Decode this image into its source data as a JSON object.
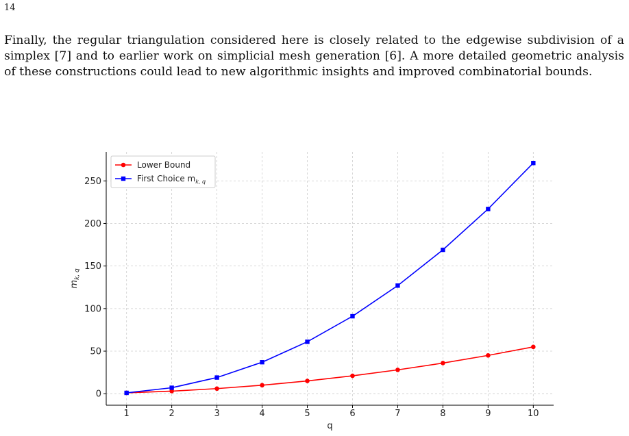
{
  "page": {
    "page_number": "14",
    "paragraph": "Finally, the regular triangulation considered here is closely related to the edgewise subdivision of a simplex [7] and to earlier work on simplicial mesh generation [6]. A more detailed geometric analysis of these constructions could lead to new algorithmic insights and improved combinatorial bounds."
  },
  "colors": {
    "lower_bound": "#ff0000",
    "first_choice": "#0000ff",
    "grid": "#cccccc",
    "axis": "#000000"
  },
  "chart_data": {
    "type": "line",
    "title": "",
    "xlabel": "q",
    "ylabel_main": "m",
    "ylabel_sub": "k, q",
    "x": [
      1,
      2,
      3,
      4,
      5,
      6,
      7,
      8,
      9,
      10
    ],
    "xlim": [
      0.55,
      10.45
    ],
    "ylim": [
      -13.5,
      284
    ],
    "yticks": [
      0,
      50,
      100,
      150,
      200,
      250
    ],
    "grid": true,
    "legend_position": "top-left",
    "series": [
      {
        "name": "Lower Bound",
        "legend_main": "Lower Bound",
        "legend_sub": "",
        "marker": "circle",
        "color": "#ff0000",
        "values": [
          1,
          3,
          6,
          10,
          15,
          21,
          28,
          36,
          45,
          55
        ]
      },
      {
        "name": "First Choice m_{k,q}",
        "legend_main": "First Choice m",
        "legend_sub": "k, q",
        "marker": "square",
        "color": "#0000ff",
        "values": [
          1,
          7,
          19,
          37,
          61,
          91,
          127,
          169,
          217,
          271
        ]
      }
    ]
  }
}
